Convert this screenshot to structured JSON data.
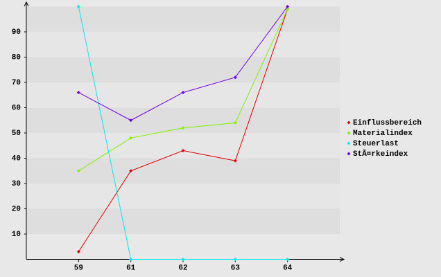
{
  "chart_data": {
    "type": "line",
    "categories": [
      "59",
      "61",
      "62",
      "63",
      "64"
    ],
    "series": [
      {
        "name": "Einflussbereich",
        "color": "#e00000",
        "values": [
          3,
          35,
          43,
          39,
          99
        ]
      },
      {
        "name": "Materialindex",
        "color": "#80f000",
        "values": [
          35,
          48,
          52,
          54,
          99
        ]
      },
      {
        "name": "Steuerlast",
        "color": "#00e8f0",
        "values": [
          100,
          0,
          0,
          0,
          0
        ]
      },
      {
        "name": "StÃ¤rkeindex",
        "color": "#7000e0",
        "values": [
          66,
          55,
          66,
          72,
          100
        ]
      }
    ],
    "ylim": [
      0,
      100
    ],
    "yticks": [
      10,
      20,
      30,
      40,
      50,
      60,
      70,
      80,
      90
    ],
    "grid": true,
    "legend": "right"
  }
}
